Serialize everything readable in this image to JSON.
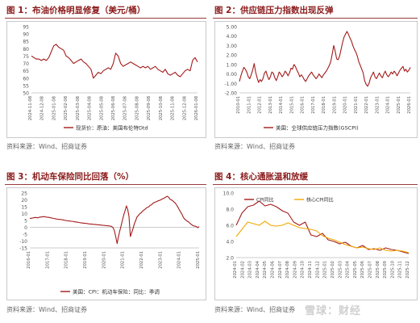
{
  "panels": [
    {
      "title": "图 1：布油价格明显修复（美元/桶）",
      "source": "资料来源：Wind、招商证券"
    },
    {
      "title": "图 2：供应链压力指数出现反弹",
      "source": "资料来源：Wind、招商证券"
    },
    {
      "title": "图 3：机动车保险同比回落（%）",
      "source": "资料来源：Wind、招商证券"
    },
    {
      "title": "图 4：核心通胀温和放缓",
      "source": "资料来源：Wind、招商证券"
    }
  ],
  "watermark": "雪球：财经",
  "colors": {
    "primary": "#a31b1b",
    "secondary": "#f0a800",
    "title": "#8b1a1a"
  },
  "chart_data": [
    {
      "type": "line",
      "x_ticks": [
        "2024-11-08",
        "2024-12-08",
        "2025-01-08",
        "2025-02-08",
        "2025-03-08",
        "2025-04-08",
        "2025-05-08",
        "2025-06-08",
        "2025-07-08",
        "2025-08-08",
        "2025-09-08",
        "2025-10-08",
        "2025-11-08",
        "2025-12-08",
        "2026-01-08"
      ],
      "ylim": [
        50,
        95
      ],
      "y_ticks": [
        50,
        55,
        60,
        65,
        70,
        75,
        80,
        85,
        90,
        95
      ],
      "series": [
        {
          "name": "现货价：原油：美国布伦特Dtd",
          "values": [
            75,
            74,
            73,
            73,
            72,
            73,
            72,
            74,
            78,
            82,
            83,
            81,
            80,
            79,
            75,
            74,
            72,
            70,
            71,
            72,
            73,
            71,
            70,
            68,
            66,
            60,
            62,
            64,
            63,
            65,
            66,
            67,
            66,
            70,
            77,
            75,
            70,
            68,
            69,
            70,
            71,
            70,
            69,
            68,
            67,
            68,
            67,
            68,
            66,
            67,
            68,
            66,
            65,
            64,
            66,
            63,
            62,
            63,
            64,
            62,
            61,
            63,
            65,
            66,
            65,
            72,
            74,
            71
          ]
        }
      ]
    },
    {
      "type": "line",
      "x_ticks": [
        "2010-01",
        "2011-01",
        "2012-01",
        "2013-01",
        "2014-01",
        "2015-01",
        "2016-01",
        "2017-01",
        "2018-01",
        "2019-01",
        "2020-01",
        "2021-01",
        "2022-01",
        "2023-01",
        "2024-01",
        "2025-01",
        "2026-01"
      ],
      "ylim": [
        -2,
        5
      ],
      "y_ticks": [
        "5.00",
        "4.00",
        "3.00",
        "2.00",
        "1.00",
        "0.00",
        "-1.00",
        "-2.00"
      ],
      "series": [
        {
          "name": "美国：全球供应链压力指数(GSCPI)",
          "values": [
            -0.8,
            -0.2,
            0.3,
            0.7,
            0.5,
            0.2,
            -0.3,
            -0.5,
            -0.1,
            0.4,
            1.1,
            0.2,
            -0.4,
            -0.9,
            -0.6,
            -0.8,
            -0.5,
            0.1,
            0.3,
            -0.2,
            -0.6,
            -0.3,
            0.2,
            0.1,
            -0.4,
            -0.7,
            -0.3,
            0.2,
            0.0,
            -0.3,
            -0.1,
            0.3,
            0.1,
            -0.2,
            0.1,
            0.6,
            0.5,
            1.0,
            0.8,
            0.4,
            0.1,
            -0.3,
            -0.1,
            -0.3,
            -0.6,
            -0.8,
            -0.5,
            -0.2,
            0.0,
            0.2,
            -0.1,
            -0.3,
            -0.5,
            -0.3,
            0.0,
            -0.2,
            -0.4,
            -0.1,
            0.1,
            0.3,
            0.6,
            0.9,
            1.3,
            2.1,
            3.0,
            2.4,
            1.6,
            1.5,
            1.9,
            2.6,
            3.3,
            3.9,
            4.2,
            4.5,
            4.2,
            3.8,
            3.5,
            3.0,
            2.6,
            2.3,
            1.9,
            1.3,
            0.9,
            0.5,
            0.1,
            -0.7,
            -1.1,
            -1.3,
            -1.0,
            -0.4,
            -0.1,
            0.2,
            -0.3,
            -0.5,
            -0.2,
            0.1,
            -0.2,
            -0.4,
            0.0,
            0.3,
            -0.1,
            -0.3,
            -0.1,
            0.2,
            0.0,
            0.3,
            0.1,
            -0.2,
            0.1,
            0.4,
            0.6,
            0.8,
            0.3,
            0.5,
            0.2,
            0.4,
            0.7
          ]
        }
      ]
    },
    {
      "type": "line",
      "x_ticks": [
        "2016-01",
        "2017-01",
        "2018-01",
        "2019-01",
        "2020-01",
        "2021-01",
        "2022-01",
        "2023-01",
        "2024-01",
        "2025-01"
      ],
      "ylim": [
        -15,
        25
      ],
      "y_ticks": [
        25,
        20,
        15,
        10,
        5,
        0,
        -5,
        -10,
        -15
      ],
      "series": [
        {
          "name": "美国：CPI：机动车保险：同比：季调",
          "values": [
            6.4,
            6.6,
            6.7,
            7.0,
            7.2,
            7.1,
            6.9,
            7.3,
            7.5,
            7.6,
            7.7,
            7.8,
            7.5,
            7.4,
            7.3,
            7.1,
            6.9,
            6.7,
            6.5,
            6.3,
            6.1,
            5.9,
            5.8,
            5.7,
            5.6,
            5.4,
            5.2,
            5.0,
            4.8,
            4.7,
            4.6,
            4.5,
            4.4,
            4.2,
            4.0,
            3.9,
            3.7,
            3.5,
            3.4,
            3.2,
            3.1,
            3.0,
            2.9,
            2.8,
            2.6,
            2.5,
            2.4,
            2.3,
            2.2,
            2.1,
            2.0,
            1.9,
            1.8,
            1.7,
            1.6,
            1.5,
            1.4,
            1.3,
            1.2,
            1.1,
            1.0,
            0.9,
            0.5,
            -0.4,
            -2.7,
            -7.0,
            -11.9,
            -7.0,
            -2.5,
            1.0,
            5.0,
            9.0,
            12.0,
            15.6,
            13.0,
            8.0,
            -6.7,
            -4.0,
            -1.0,
            2.5,
            5.0,
            7.5,
            8.5,
            9.8,
            10.5,
            11.5,
            12.5,
            13.0,
            14.0,
            14.6,
            15.0,
            16.0,
            16.4,
            17.4,
            18.0,
            18.4,
            18.8,
            19.3,
            19.6,
            20.0,
            20.6,
            21.0,
            21.5,
            22.2,
            22.6,
            21.9,
            20.5,
            20.0,
            19.4,
            18.4,
            17.6,
            16.2,
            14.6,
            12.8,
            11.1,
            9.5,
            7.5,
            6.0,
            5.3,
            4.5,
            3.9,
            3.0,
            2.2,
            1.5,
            1.0,
            0.8,
            0.5,
            -0.3,
            0.6
          ]
        }
      ]
    },
    {
      "type": "line",
      "x_ticks": [
        "2024-01",
        "2024-02",
        "2024-03",
        "2024-04",
        "2024-05",
        "2024-06",
        "2024-07",
        "2024-08",
        "2024-09",
        "2024-10",
        "2024-11",
        "2024-12",
        "2025-01",
        "2025-02",
        "2025-03",
        "2025-04",
        "2025-05",
        "2025-06",
        "2025-07",
        "2025-08",
        "2025-09",
        "2025-10",
        "2025-11",
        "2025-12"
      ],
      "ylim": [
        2.0,
        10.0
      ],
      "y_ticks": [
        "10.0",
        "8.0",
        "6.0",
        "4.0",
        "2.0"
      ],
      "series": [
        {
          "name": "CPI同比",
          "values": [
            6.0,
            7.5,
            8.3,
            8.5,
            9.0,
            8.4,
            8.6,
            8.3,
            7.8,
            7.5,
            6.4,
            6.0,
            6.4,
            4.8,
            4.6,
            5.0,
            4.2,
            4.0,
            3.7,
            3.9,
            3.4,
            3.2,
            3.5,
            3.0,
            3.1,
            2.9,
            3.2,
            3.0,
            2.9,
            2.7,
            2.5
          ]
        },
        {
          "name": "核心CPI同比",
          "values": [
            4.6,
            5.5,
            6.4,
            6.2,
            6.0,
            6.5,
            6.0,
            5.9,
            6.0,
            6.3,
            6.0,
            5.7,
            5.6,
            5.5,
            5.3,
            4.7,
            4.4,
            4.2,
            3.9,
            3.6,
            3.4,
            3.2,
            3.3,
            3.1,
            3.0,
            3.2,
            2.9,
            2.8,
            2.9,
            2.8,
            2.6
          ]
        }
      ]
    }
  ]
}
